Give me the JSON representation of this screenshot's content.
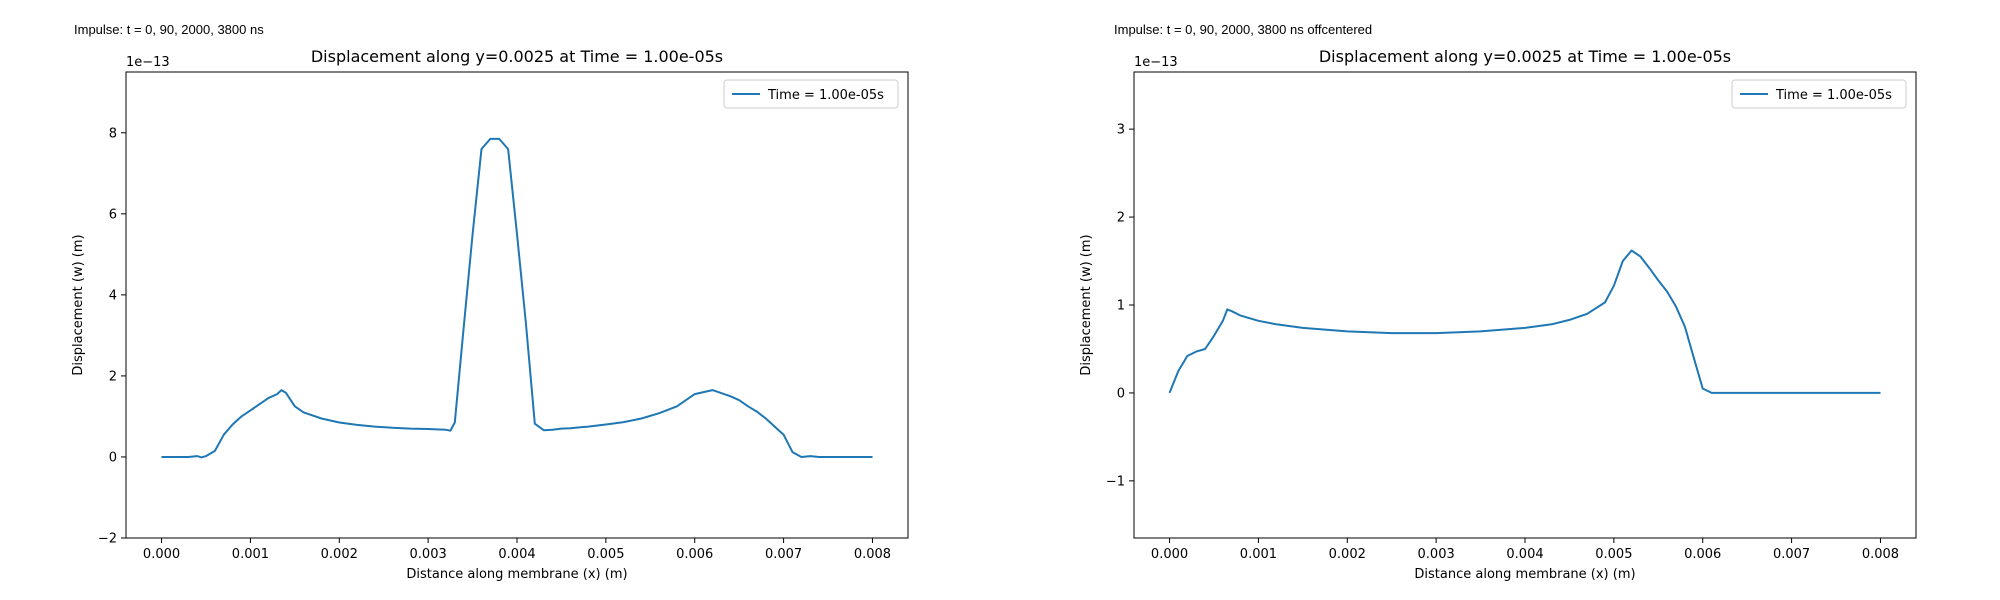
{
  "panels": [
    {
      "caption": "Impulse: t = 0, 90, 2000, 3800 ns"
    },
    {
      "caption": "Impulse: t = 0, 90, 2000, 3800 ns offcentered"
    }
  ],
  "chart_data": [
    {
      "type": "line",
      "title": "Displacement along y=0.0025 at Time = 1.00e-05s",
      "xlabel": "Distance along membrane (x) (m)",
      "ylabel": "Displacement (w) (m)",
      "y_scale_label": "1e−13",
      "xlim": [
        -0.0004,
        0.0084
      ],
      "ylim": [
        -2,
        9.5
      ],
      "xticks": [
        0.0,
        0.001,
        0.002,
        0.003,
        0.004,
        0.005,
        0.006,
        0.007,
        0.008
      ],
      "xtick_labels": [
        "0.000",
        "0.001",
        "0.002",
        "0.003",
        "0.004",
        "0.005",
        "0.006",
        "0.007",
        "0.008"
      ],
      "yticks": [
        -2,
        0,
        2,
        4,
        6,
        8
      ],
      "ytick_labels": [
        "−2",
        "0",
        "2",
        "4",
        "6",
        "8"
      ],
      "legend": "upper-right",
      "grid": false,
      "series": [
        {
          "name": "Time = 1.00e-05s",
          "color": "#1f77b4",
          "x": [
            0.0,
            0.0001,
            0.0002,
            0.0003,
            0.0004,
            0.00045,
            0.0005,
            0.0006,
            0.0007,
            0.0008,
            0.0009,
            0.001,
            0.0011,
            0.0012,
            0.0013,
            0.00135,
            0.0014,
            0.0015,
            0.0016,
            0.0018,
            0.002,
            0.0022,
            0.0024,
            0.0026,
            0.0028,
            0.003,
            0.0032,
            0.00325,
            0.0033,
            0.0034,
            0.0035,
            0.0036,
            0.0037,
            0.0038,
            0.0039,
            0.004,
            0.0041,
            0.0042,
            0.0043,
            0.0044,
            0.0045,
            0.0046,
            0.0047,
            0.0048,
            0.005,
            0.0052,
            0.0054,
            0.0056,
            0.0058,
            0.006,
            0.0062,
            0.0064,
            0.0065,
            0.0066,
            0.0067,
            0.0068,
            0.0069,
            0.007,
            0.0071,
            0.0072,
            0.0073,
            0.0074,
            0.0075,
            0.0076,
            0.0078,
            0.008
          ],
          "values": [
            0.0,
            0.0,
            0.0,
            0.0,
            0.02,
            -0.01,
            0.02,
            0.15,
            0.55,
            0.8,
            1.0,
            1.15,
            1.3,
            1.45,
            1.55,
            1.65,
            1.58,
            1.25,
            1.1,
            0.95,
            0.85,
            0.79,
            0.75,
            0.72,
            0.7,
            0.69,
            0.67,
            0.65,
            0.85,
            3.2,
            5.5,
            7.6,
            7.85,
            7.85,
            7.6,
            5.5,
            3.3,
            0.82,
            0.66,
            0.67,
            0.7,
            0.71,
            0.73,
            0.75,
            0.8,
            0.86,
            0.95,
            1.08,
            1.25,
            1.55,
            1.65,
            1.5,
            1.4,
            1.25,
            1.12,
            0.95,
            0.75,
            0.55,
            0.12,
            0.0,
            0.02,
            0.0,
            0.0,
            0.0,
            0.0,
            0.0
          ]
        }
      ]
    },
    {
      "type": "line",
      "title": "Displacement along y=0.0025 at Time = 1.00e-05s",
      "xlabel": "Distance along membrane (x) (m)",
      "ylabel": "Displacement (w) (m)",
      "y_scale_label": "1e−13",
      "xlim": [
        -0.0004,
        0.0084
      ],
      "ylim": [
        -1.65,
        3.65
      ],
      "xticks": [
        0.0,
        0.001,
        0.002,
        0.003,
        0.004,
        0.005,
        0.006,
        0.007,
        0.008
      ],
      "xtick_labels": [
        "0.000",
        "0.001",
        "0.002",
        "0.003",
        "0.004",
        "0.005",
        "0.006",
        "0.007",
        "0.008"
      ],
      "yticks": [
        -1,
        0,
        1,
        2,
        3
      ],
      "ytick_labels": [
        "−1",
        "0",
        "1",
        "2",
        "3"
      ],
      "legend": "upper-right",
      "grid": false,
      "series": [
        {
          "name": "Time = 1.00e-05s",
          "color": "#1f77b4",
          "x": [
            0.0,
            0.0001,
            0.0002,
            0.0003,
            0.0004,
            0.0005,
            0.0006,
            0.00065,
            0.0007,
            0.0008,
            0.001,
            0.0012,
            0.0015,
            0.002,
            0.0025,
            0.003,
            0.0035,
            0.004,
            0.0043,
            0.0045,
            0.0047,
            0.0049,
            0.005,
            0.0051,
            0.0052,
            0.0053,
            0.0054,
            0.0055,
            0.0056,
            0.0057,
            0.0058,
            0.0059,
            0.006,
            0.0061,
            0.0065,
            0.007,
            0.0075,
            0.008
          ],
          "values": [
            0.0,
            0.25,
            0.42,
            0.47,
            0.5,
            0.65,
            0.82,
            0.95,
            0.93,
            0.88,
            0.82,
            0.78,
            0.74,
            0.7,
            0.68,
            0.68,
            0.7,
            0.74,
            0.78,
            0.83,
            0.9,
            1.03,
            1.22,
            1.5,
            1.62,
            1.55,
            1.42,
            1.28,
            1.15,
            0.98,
            0.75,
            0.4,
            0.05,
            0.0,
            0.0,
            0.0,
            0.0,
            0.0
          ]
        }
      ]
    }
  ]
}
